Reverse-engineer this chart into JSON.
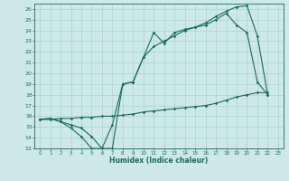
{
  "xlabel": "Humidex (Indice chaleur)",
  "bg_color": "#cce8e8",
  "line_color": "#1a6b5a",
  "grid_color": "#b0d0d0",
  "xlim": [
    -0.5,
    23.5
  ],
  "ylim": [
    13,
    26.5
  ],
  "xticks": [
    0,
    1,
    2,
    3,
    4,
    5,
    6,
    7,
    8,
    9,
    10,
    11,
    12,
    13,
    14,
    15,
    16,
    17,
    18,
    19,
    20,
    21,
    22,
    23
  ],
  "yticks": [
    13,
    14,
    15,
    16,
    17,
    18,
    19,
    20,
    21,
    22,
    23,
    24,
    25,
    26
  ],
  "line1_x": [
    0,
    1,
    2,
    3,
    4,
    5,
    6,
    7,
    8,
    9,
    10,
    11,
    12,
    13,
    14,
    15,
    16,
    17,
    18,
    19,
    20,
    21,
    22
  ],
  "line1_y": [
    15.7,
    15.8,
    15.5,
    14.9,
    14.1,
    13.0,
    13.0,
    15.2,
    19.0,
    19.2,
    21.5,
    23.8,
    22.8,
    23.8,
    24.1,
    24.3,
    24.5,
    25.0,
    25.6,
    24.5,
    23.8,
    19.2,
    18.0
  ],
  "line2_x": [
    0,
    1,
    2,
    3,
    4,
    5,
    6,
    7,
    8,
    9,
    10,
    11,
    12,
    13,
    14,
    15,
    16,
    17,
    18,
    19,
    20,
    21,
    22
  ],
  "line2_y": [
    15.7,
    15.8,
    15.5,
    15.2,
    14.9,
    14.1,
    13.0,
    13.0,
    19.0,
    19.2,
    21.5,
    22.5,
    23.0,
    23.5,
    24.0,
    24.3,
    24.7,
    25.3,
    25.8,
    26.2,
    26.3,
    23.5,
    18.0
  ],
  "line3_x": [
    0,
    1,
    2,
    3,
    4,
    5,
    6,
    7,
    8,
    9,
    10,
    11,
    12,
    13,
    14,
    15,
    16,
    17,
    18,
    19,
    20,
    21,
    22
  ],
  "line3_y": [
    15.7,
    15.7,
    15.8,
    15.8,
    15.9,
    15.9,
    16.0,
    16.0,
    16.1,
    16.2,
    16.4,
    16.5,
    16.6,
    16.7,
    16.8,
    16.9,
    17.0,
    17.2,
    17.5,
    17.8,
    18.0,
    18.2,
    18.2
  ]
}
